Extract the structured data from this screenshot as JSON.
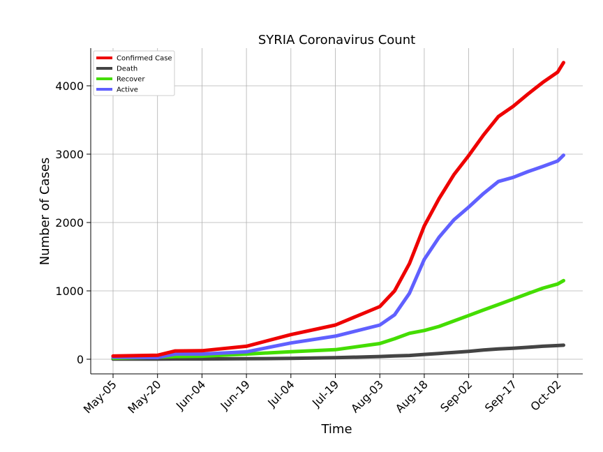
{
  "chart_data": {
    "type": "line",
    "title": "SYRIA Coronavirus Count",
    "xlabel": "Time",
    "ylabel": "Number of Cases",
    "x_start": "May-05",
    "x_end": "Oct-04",
    "xticks": [
      "May-05",
      "May-20",
      "Jun-04",
      "Jun-19",
      "Jul-04",
      "Jul-19",
      "Aug-03",
      "Aug-18",
      "Sep-02",
      "Sep-17",
      "Oct-02"
    ],
    "yticks": [
      0,
      1000,
      2000,
      3000,
      4000
    ],
    "ylim": [
      -200,
      4560
    ],
    "grid": true,
    "legend_position": "top-left",
    "x": [
      "May-05",
      "May-20",
      "May-26",
      "Jun-04",
      "Jun-19",
      "Jul-04",
      "Jul-19",
      "Aug-03",
      "Aug-08",
      "Aug-13",
      "Aug-18",
      "Aug-23",
      "Aug-28",
      "Sep-02",
      "Sep-07",
      "Sep-12",
      "Sep-17",
      "Sep-22",
      "Sep-27",
      "Oct-02",
      "Oct-04"
    ],
    "series": [
      {
        "name": "Confirmed Case",
        "color": "#ee0000",
        "values": [
          47,
          58,
          121,
          125,
          190,
          360,
          500,
          770,
          1000,
          1400,
          1950,
          2350,
          2700,
          2980,
          3280,
          3550,
          3700,
          3880,
          4050,
          4200,
          4340
        ]
      },
      {
        "name": "Death",
        "color": "#444444",
        "values": [
          2,
          3,
          4,
          4,
          7,
          12,
          22,
          40,
          48,
          55,
          70,
          85,
          100,
          115,
          135,
          150,
          160,
          175,
          190,
          200,
          205
        ]
      },
      {
        "name": "Recover",
        "color": "#44dd00",
        "values": [
          14,
          30,
          40,
          45,
          75,
          110,
          140,
          230,
          300,
          380,
          420,
          480,
          560,
          640,
          720,
          800,
          880,
          960,
          1040,
          1100,
          1150
        ]
      },
      {
        "name": "Active",
        "color": "#6060ff",
        "values": [
          31,
          25,
          77,
          76,
          108,
          238,
          338,
          500,
          650,
          965,
          1460,
          1785,
          2040,
          2225,
          2425,
          2600,
          2660,
          2745,
          2820,
          2900,
          2985
        ]
      }
    ]
  }
}
